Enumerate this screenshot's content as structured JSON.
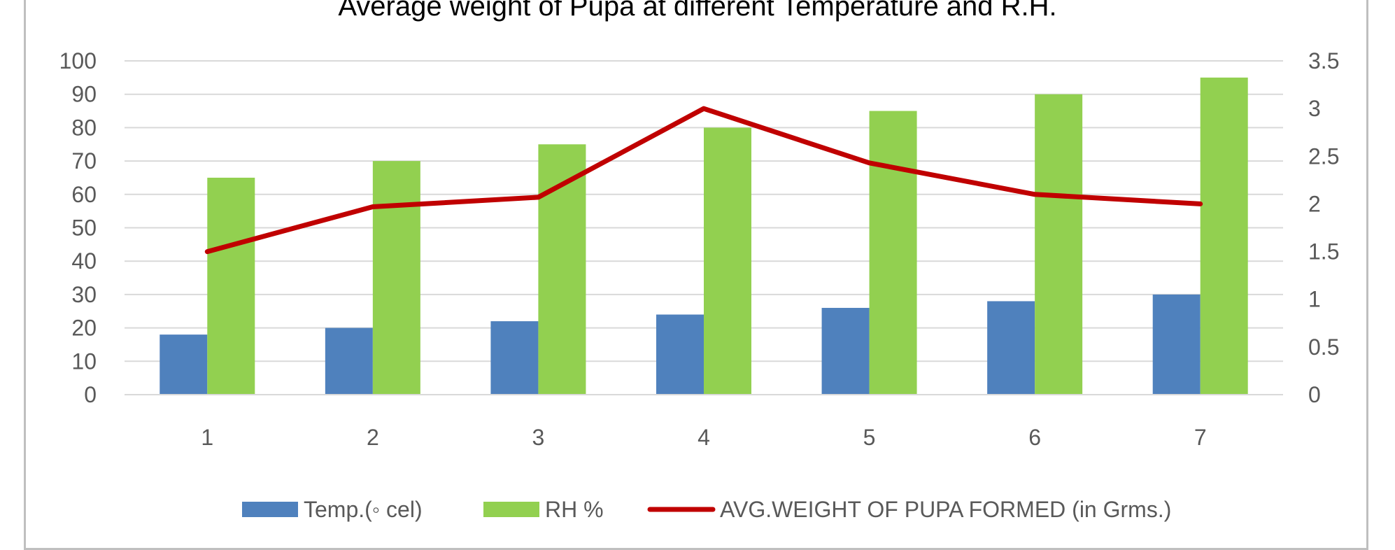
{
  "chart_data": {
    "type": "bar",
    "title": "Average weight of Pupa at different Temperature and R.H.",
    "xlabel": "",
    "ylabel": "",
    "categories": [
      "1",
      "2",
      "3",
      "4",
      "5",
      "6",
      "7"
    ],
    "series": [
      {
        "name": "Temp.(◦ cel)",
        "kind": "bar",
        "axis": "primary",
        "color": "#4f81bd",
        "values": [
          18,
          20,
          22,
          24,
          26,
          28,
          30
        ]
      },
      {
        "name": "RH %",
        "kind": "bar",
        "axis": "primary",
        "color": "#92d050",
        "values": [
          65,
          70,
          75,
          80,
          85,
          90,
          95
        ]
      },
      {
        "name": "AVG.WEIGHT OF PUPA FORMED (in Grms.)",
        "kind": "line",
        "axis": "secondary",
        "color": "#c00000",
        "values": [
          1.5,
          1.97,
          2.07,
          3.0,
          2.43,
          2.1,
          2.0
        ]
      }
    ],
    "ylim": [
      0,
      100
    ],
    "yticks": [
      "0",
      "10",
      "20",
      "30",
      "40",
      "50",
      "60",
      "70",
      "80",
      "90",
      "100"
    ],
    "y2lim": [
      0,
      3.5
    ],
    "y2ticks": [
      "0",
      "0.5",
      "1",
      "1.5",
      "2",
      "2.5",
      "3",
      "3.5"
    ],
    "grid": true,
    "legend_position": "bottom",
    "gridline_color": "#d9d9d9"
  }
}
